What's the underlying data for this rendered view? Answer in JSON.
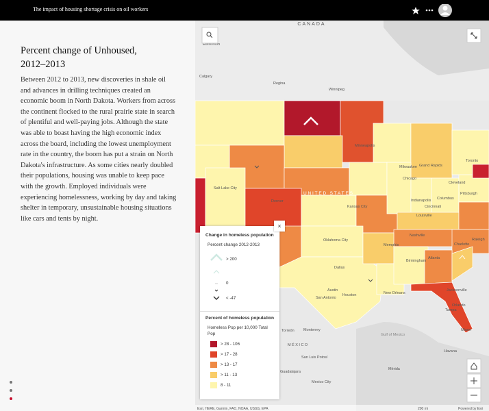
{
  "header": {
    "title": "The impact of housing shortage crisis on oil workers"
  },
  "article": {
    "heading": "Percent change of Unhoused, 2012–2013",
    "body": "Between 2012 to 2013, new discoveries in shale oil and advances in drilling techniques created an economic boom in  North Dakota. Workers from across the continent flocked to the rural prairie state in search of plentiful and well-paying jobs. Although the state was able to boast having the high economic index across the board, including the lowest unemployment rate in the country, the boom has put a strain on North Dakota's infrastructure. As some cities nearly doubled their populations, housing was unable to keep pace with the growth. Employed individuals were experiencing homelessness, working by day and taking shelter in temporary, unsustainable housing situations like cars and tents by night."
  },
  "legend": {
    "change_title": "Change in homeless population",
    "change_subtitle": "Percent change 2012-2013",
    "change_items": [
      "> 200",
      "0",
      "< -47"
    ],
    "percent_title": "Percent of homeless population",
    "percent_subtitle": "Homeless Pop per 10,000 Total Pop",
    "percent_items": [
      "> 28 - 106",
      "> 17 - 28",
      "> 13 - 17",
      "> 11 - 13",
      "8 - 11"
    ]
  },
  "map": {
    "labels": [
      "CANADA",
      "Edmonton",
      "Calgary",
      "Regina",
      "Winnipeg",
      "Minneapolis",
      "Milwaukee",
      "Grand Rapids",
      "Toronto",
      "Chicago",
      "Cleveland",
      "Pittsburgh",
      "Indianapolis",
      "Columbus",
      "Cincinnati",
      "Louisville",
      "Nashville",
      "Charlotte",
      "Raleigh",
      "Memphis",
      "Atlanta",
      "Birmingham",
      "Jacksonville",
      "Orlando",
      "Tampa",
      "Miami",
      "New Orleans",
      "Houston",
      "Dallas",
      "Austin",
      "San Antonio",
      "Oklahoma City",
      "Kansas City",
      "Denver",
      "Salt Lake City",
      "UNITED STATES",
      "MÉXICO",
      "Monterrey",
      "Torreón",
      "San Luis Potosí",
      "Guadalajara",
      "Mexico City",
      "Mérida",
      "Havana",
      "Gulf of Mexico"
    ],
    "attribution": "Esri, HERE, Garmin, FAO, NOAA, USGS, EPA",
    "scale": "200 mi",
    "powered": "Powered by Esri"
  }
}
